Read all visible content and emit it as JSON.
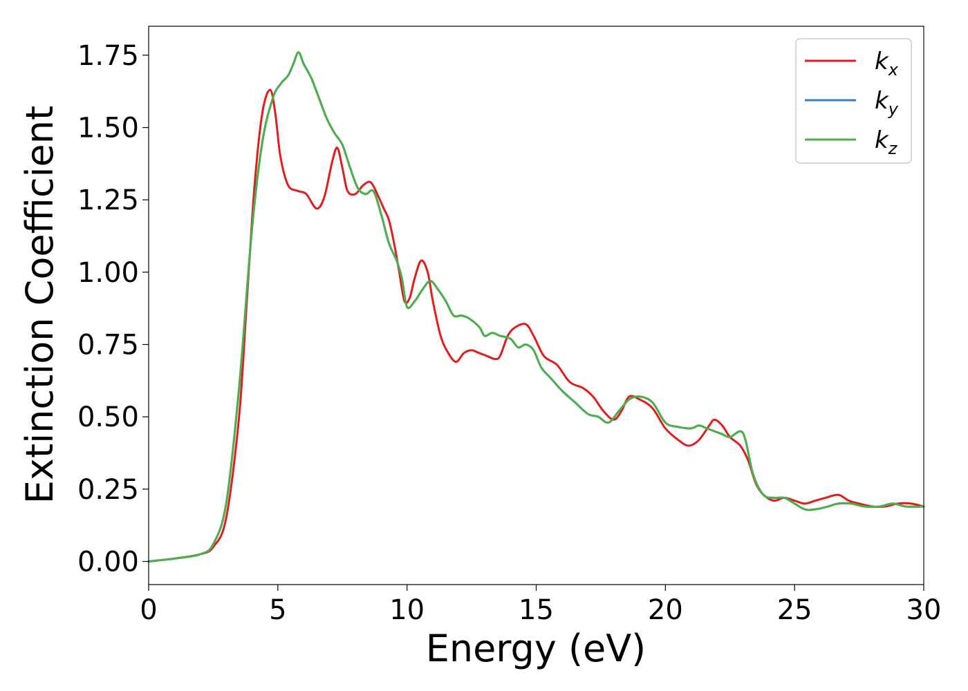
{
  "chart_data": {
    "type": "line",
    "title": "",
    "xlabel": "Energy (eV)",
    "ylabel": "Extinction Coefficient",
    "xlim": [
      0,
      30
    ],
    "ylim": [
      -0.08,
      1.85
    ],
    "xticks": [
      0,
      5,
      10,
      15,
      20,
      25,
      30
    ],
    "xtick_labels": [
      "0",
      "5",
      "10",
      "15",
      "20",
      "25",
      "30"
    ],
    "yticks": [
      0,
      0.25,
      0.5,
      0.75,
      1.0,
      1.25,
      1.5,
      1.75
    ],
    "ytick_labels": [
      "0.00",
      "0.25",
      "0.50",
      "0.75",
      "1.00",
      "1.25",
      "1.50",
      "1.75"
    ],
    "grid": false,
    "legend": {
      "position": "top-right"
    },
    "series": [
      {
        "name": "k_x",
        "label_main": "k",
        "label_sub": "x",
        "color": "#e41a1c",
        "points": [
          [
            0,
            0
          ],
          [
            1,
            0.01
          ],
          [
            2,
            0.025
          ],
          [
            2.5,
            0.05
          ],
          [
            3,
            0.15
          ],
          [
            3.5,
            0.5
          ],
          [
            3.8,
            0.9
          ],
          [
            4.1,
            1.3
          ],
          [
            4.4,
            1.55
          ],
          [
            4.7,
            1.63
          ],
          [
            4.9,
            1.55
          ],
          [
            5.1,
            1.4
          ],
          [
            5.4,
            1.3
          ],
          [
            5.8,
            1.28
          ],
          [
            6.1,
            1.27
          ],
          [
            6.5,
            1.22
          ],
          [
            6.8,
            1.26
          ],
          [
            7.1,
            1.38
          ],
          [
            7.3,
            1.43
          ],
          [
            7.5,
            1.36
          ],
          [
            7.7,
            1.28
          ],
          [
            8,
            1.27
          ],
          [
            8.3,
            1.3
          ],
          [
            8.6,
            1.31
          ],
          [
            8.9,
            1.26
          ],
          [
            9.1,
            1.22
          ],
          [
            9.3,
            1.18
          ],
          [
            9.5,
            1.1
          ],
          [
            9.7,
            1.0
          ],
          [
            9.9,
            0.9
          ],
          [
            10.1,
            0.91
          ],
          [
            10.3,
            0.98
          ],
          [
            10.55,
            1.04
          ],
          [
            10.8,
            1.0
          ],
          [
            11,
            0.9
          ],
          [
            11.3,
            0.78
          ],
          [
            11.6,
            0.72
          ],
          [
            11.9,
            0.69
          ],
          [
            12.2,
            0.72
          ],
          [
            12.5,
            0.73
          ],
          [
            12.8,
            0.72
          ],
          [
            13.1,
            0.71
          ],
          [
            13.4,
            0.7
          ],
          [
            13.6,
            0.71
          ],
          [
            13.9,
            0.78
          ],
          [
            14.2,
            0.81
          ],
          [
            14.6,
            0.82
          ],
          [
            14.9,
            0.78
          ],
          [
            15.3,
            0.71
          ],
          [
            15.8,
            0.68
          ],
          [
            16.3,
            0.62
          ],
          [
            16.8,
            0.6
          ],
          [
            17.2,
            0.57
          ],
          [
            17.6,
            0.52
          ],
          [
            18,
            0.49
          ],
          [
            18.3,
            0.52
          ],
          [
            18.6,
            0.57
          ],
          [
            19,
            0.56
          ],
          [
            19.5,
            0.53
          ],
          [
            20,
            0.46
          ],
          [
            20.5,
            0.42
          ],
          [
            20.9,
            0.4
          ],
          [
            21.3,
            0.42
          ],
          [
            21.7,
            0.47
          ],
          [
            21.9,
            0.49
          ],
          [
            22.2,
            0.47
          ],
          [
            22.5,
            0.43
          ],
          [
            22.9,
            0.4
          ],
          [
            23.2,
            0.35
          ],
          [
            23.5,
            0.27
          ],
          [
            23.8,
            0.23
          ],
          [
            24.2,
            0.21
          ],
          [
            24.6,
            0.22
          ],
          [
            25,
            0.21
          ],
          [
            25.4,
            0.2
          ],
          [
            25.8,
            0.21
          ],
          [
            26.2,
            0.22
          ],
          [
            26.7,
            0.23
          ],
          [
            27.1,
            0.21
          ],
          [
            27.5,
            0.2
          ],
          [
            28,
            0.19
          ],
          [
            28.5,
            0.19
          ],
          [
            29,
            0.2
          ],
          [
            29.5,
            0.2
          ],
          [
            30,
            0.19
          ]
        ]
      },
      {
        "name": "k_y",
        "label_main": "k",
        "label_sub": "y",
        "color": "#377eb8",
        "points": [
          [
            0,
            0
          ],
          [
            1,
            0.01
          ],
          [
            2,
            0.025
          ],
          [
            2.5,
            0.06
          ],
          [
            3,
            0.2
          ],
          [
            3.5,
            0.6
          ],
          [
            4,
            1.15
          ],
          [
            4.4,
            1.45
          ],
          [
            4.8,
            1.6
          ],
          [
            5.1,
            1.65
          ],
          [
            5.4,
            1.68
          ],
          [
            5.6,
            1.72
          ],
          [
            5.8,
            1.76
          ],
          [
            6,
            1.72
          ],
          [
            6.3,
            1.67
          ],
          [
            6.6,
            1.6
          ],
          [
            6.9,
            1.53
          ],
          [
            7.2,
            1.48
          ],
          [
            7.5,
            1.44
          ],
          [
            7.8,
            1.36
          ],
          [
            8.1,
            1.29
          ],
          [
            8.4,
            1.27
          ],
          [
            8.7,
            1.28
          ],
          [
            9,
            1.2
          ],
          [
            9.3,
            1.1
          ],
          [
            9.6,
            1.04
          ],
          [
            9.8,
            0.98
          ],
          [
            10,
            0.88
          ],
          [
            10.3,
            0.9
          ],
          [
            10.6,
            0.94
          ],
          [
            10.9,
            0.97
          ],
          [
            11.2,
            0.94
          ],
          [
            11.5,
            0.9
          ],
          [
            11.8,
            0.85
          ],
          [
            12.1,
            0.85
          ],
          [
            12.4,
            0.84
          ],
          [
            12.8,
            0.81
          ],
          [
            13,
            0.78
          ],
          [
            13.3,
            0.79
          ],
          [
            13.6,
            0.78
          ],
          [
            14,
            0.77
          ],
          [
            14.3,
            0.74
          ],
          [
            14.6,
            0.75
          ],
          [
            14.9,
            0.73
          ],
          [
            15.2,
            0.67
          ],
          [
            15.6,
            0.63
          ],
          [
            16,
            0.59
          ],
          [
            16.5,
            0.55
          ],
          [
            17,
            0.51
          ],
          [
            17.4,
            0.5
          ],
          [
            17.8,
            0.48
          ],
          [
            18.2,
            0.52
          ],
          [
            18.6,
            0.56
          ],
          [
            19,
            0.57
          ],
          [
            19.5,
            0.55
          ],
          [
            20,
            0.48
          ],
          [
            20.5,
            0.465
          ],
          [
            21,
            0.46
          ],
          [
            21.3,
            0.47
          ],
          [
            21.6,
            0.46
          ],
          [
            21.9,
            0.45
          ],
          [
            22.2,
            0.44
          ],
          [
            22.5,
            0.43
          ],
          [
            22.9,
            0.45
          ],
          [
            23.1,
            0.42
          ],
          [
            23.4,
            0.3
          ],
          [
            23.8,
            0.23
          ],
          [
            24.2,
            0.22
          ],
          [
            24.6,
            0.22
          ],
          [
            25,
            0.2
          ],
          [
            25.4,
            0.18
          ],
          [
            25.8,
            0.18
          ],
          [
            26.3,
            0.19
          ],
          [
            26.7,
            0.2
          ],
          [
            27.2,
            0.2
          ],
          [
            27.7,
            0.19
          ],
          [
            28.3,
            0.19
          ],
          [
            28.8,
            0.2
          ],
          [
            29.3,
            0.19
          ],
          [
            30,
            0.19
          ]
        ]
      },
      {
        "name": "k_z",
        "label_main": "k",
        "label_sub": "z",
        "color": "#4daf4a",
        "points": [
          [
            0,
            0
          ],
          [
            1,
            0.01
          ],
          [
            2,
            0.025
          ],
          [
            2.5,
            0.06
          ],
          [
            3,
            0.2
          ],
          [
            3.5,
            0.6
          ],
          [
            4,
            1.15
          ],
          [
            4.4,
            1.45
          ],
          [
            4.8,
            1.6
          ],
          [
            5.1,
            1.65
          ],
          [
            5.4,
            1.68
          ],
          [
            5.6,
            1.72
          ],
          [
            5.8,
            1.76
          ],
          [
            6,
            1.72
          ],
          [
            6.3,
            1.67
          ],
          [
            6.6,
            1.6
          ],
          [
            6.9,
            1.53
          ],
          [
            7.2,
            1.48
          ],
          [
            7.5,
            1.44
          ],
          [
            7.8,
            1.36
          ],
          [
            8.1,
            1.29
          ],
          [
            8.4,
            1.27
          ],
          [
            8.7,
            1.28
          ],
          [
            9,
            1.2
          ],
          [
            9.3,
            1.1
          ],
          [
            9.6,
            1.04
          ],
          [
            9.8,
            0.98
          ],
          [
            10,
            0.88
          ],
          [
            10.3,
            0.9
          ],
          [
            10.6,
            0.94
          ],
          [
            10.9,
            0.97
          ],
          [
            11.2,
            0.94
          ],
          [
            11.5,
            0.9
          ],
          [
            11.8,
            0.85
          ],
          [
            12.1,
            0.85
          ],
          [
            12.4,
            0.84
          ],
          [
            12.8,
            0.81
          ],
          [
            13,
            0.78
          ],
          [
            13.3,
            0.79
          ],
          [
            13.6,
            0.78
          ],
          [
            14,
            0.77
          ],
          [
            14.3,
            0.74
          ],
          [
            14.6,
            0.75
          ],
          [
            14.9,
            0.73
          ],
          [
            15.2,
            0.67
          ],
          [
            15.6,
            0.63
          ],
          [
            16,
            0.59
          ],
          [
            16.5,
            0.55
          ],
          [
            17,
            0.51
          ],
          [
            17.4,
            0.5
          ],
          [
            17.8,
            0.48
          ],
          [
            18.2,
            0.52
          ],
          [
            18.6,
            0.56
          ],
          [
            19,
            0.57
          ],
          [
            19.5,
            0.55
          ],
          [
            20,
            0.48
          ],
          [
            20.5,
            0.465
          ],
          [
            21,
            0.46
          ],
          [
            21.3,
            0.47
          ],
          [
            21.6,
            0.46
          ],
          [
            21.9,
            0.45
          ],
          [
            22.2,
            0.44
          ],
          [
            22.5,
            0.43
          ],
          [
            22.9,
            0.45
          ],
          [
            23.1,
            0.42
          ],
          [
            23.4,
            0.3
          ],
          [
            23.8,
            0.23
          ],
          [
            24.2,
            0.22
          ],
          [
            24.6,
            0.22
          ],
          [
            25,
            0.2
          ],
          [
            25.4,
            0.18
          ],
          [
            25.8,
            0.18
          ],
          [
            26.3,
            0.19
          ],
          [
            26.7,
            0.2
          ],
          [
            27.2,
            0.2
          ],
          [
            27.7,
            0.19
          ],
          [
            28.3,
            0.19
          ],
          [
            28.8,
            0.2
          ],
          [
            29.3,
            0.19
          ],
          [
            30,
            0.19
          ]
        ]
      }
    ]
  }
}
